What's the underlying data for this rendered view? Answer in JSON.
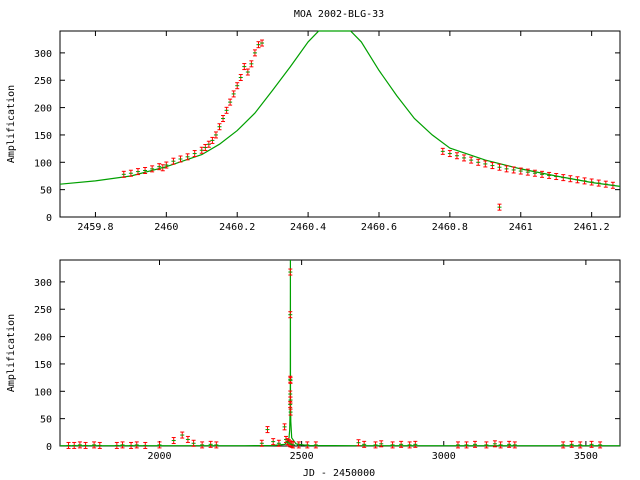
{
  "title": "MOA 2002-BLG-33",
  "colors": {
    "data": "#ff0000",
    "model": "#00a000",
    "frame": "#000000",
    "background": "#ffffff"
  },
  "chart_data": [
    {
      "type": "scatter",
      "ylabel": "Amplification",
      "xlim": [
        2459.7,
        2461.28
      ],
      "ylim": [
        0,
        340
      ],
      "xticks": [
        2459.8,
        2460,
        2460.2,
        2460.4,
        2460.6,
        2460.8,
        2461,
        2461.2
      ],
      "xtick_labels": [
        "2459.8",
        "2460",
        "2460.2",
        "2460.4",
        "2460.6",
        "2460.8",
        "2461",
        "2461.2"
      ],
      "yticks": [
        0,
        50,
        100,
        150,
        200,
        250,
        300
      ],
      "ytick_labels": [
        "0",
        "50",
        "100",
        "150",
        "200",
        "250",
        "300"
      ],
      "grid": false,
      "series": [
        {
          "role": "observed",
          "style": "errorbar-points",
          "x": [
            2459.88,
            2459.9,
            2459.92,
            2459.94,
            2459.96,
            2459.98,
            2460.0,
            2460.02,
            2460.04,
            2460.06,
            2460.08,
            2460.1,
            2460.11,
            2460.12,
            2460.13,
            2460.14,
            2460.15,
            2460.16,
            2460.17,
            2460.18,
            2460.19,
            2460.2,
            2460.21,
            2460.22,
            2460.23,
            2460.24,
            2460.25,
            2460.26,
            2460.27,
            2460.78,
            2460.8,
            2460.82,
            2460.84,
            2460.86,
            2460.88,
            2460.9,
            2460.92,
            2460.94,
            2460.96,
            2460.98,
            2461.0,
            2461.02,
            2461.04,
            2461.06,
            2461.08,
            2461.1,
            2461.12,
            2461.14,
            2461.16,
            2461.18,
            2461.2,
            2461.22,
            2461.24,
            2461.26
          ],
          "y": [
            78,
            80,
            83,
            85,
            88,
            92,
            95,
            102,
            106,
            110,
            116,
            122,
            127,
            133,
            140,
            150,
            165,
            180,
            195,
            210,
            225,
            240,
            255,
            275,
            265,
            280,
            300,
            315,
            318,
            120,
            116,
            112,
            108,
            104,
            100,
            97,
            94,
            91,
            88,
            86,
            84,
            82,
            80,
            78,
            76,
            74,
            72,
            70,
            68,
            66,
            64,
            62,
            60,
            58
          ]
        },
        {
          "role": "outlier",
          "style": "errorbar-points",
          "x": [
            2460.94,
            2459.99
          ],
          "y": [
            18,
            90
          ]
        },
        {
          "role": "model",
          "style": "line",
          "x": [
            2459.7,
            2459.8,
            2459.9,
            2460.0,
            2460.1,
            2460.15,
            2460.2,
            2460.25,
            2460.3,
            2460.35,
            2460.4,
            2460.43,
            2460.52,
            2460.55,
            2460.6,
            2460.65,
            2460.7,
            2460.75,
            2460.8,
            2460.9,
            2461.0,
            2461.1,
            2461.2,
            2461.28
          ],
          "y": [
            60,
            66,
            75,
            92,
            114,
            133,
            158,
            190,
            232,
            275,
            320,
            345,
            345,
            320,
            268,
            222,
            180,
            150,
            126,
            104,
            88,
            75,
            63,
            56
          ]
        }
      ]
    },
    {
      "type": "scatter",
      "ylabel": "Amplification",
      "xlabel": "JD - 2450000",
      "xlim": [
        1650,
        3620
      ],
      "ylim": [
        0,
        340
      ],
      "xticks": [
        2000,
        2500,
        3000,
        3500
      ],
      "xtick_labels": [
        "2000",
        "2500",
        "3000",
        "3500"
      ],
      "yticks": [
        0,
        50,
        100,
        150,
        200,
        250,
        300
      ],
      "ytick_labels": [
        "0",
        "50",
        "100",
        "150",
        "200",
        "250",
        "300"
      ],
      "grid": false,
      "series": [
        {
          "role": "observed",
          "style": "errorbar-points",
          "x": [
            1680,
            1700,
            1720,
            1740,
            1770,
            1790,
            1850,
            1870,
            1900,
            1920,
            1950,
            2000,
            2050,
            2080,
            2100,
            2120,
            2150,
            2180,
            2200,
            2360,
            2380,
            2400,
            2420,
            2440,
            2445,
            2450,
            2455,
            2460,
            2465,
            2470,
            2490,
            2520,
            2550,
            2700,
            2720,
            2760,
            2780,
            2820,
            2850,
            2880,
            2900,
            3050,
            3080,
            3110,
            3150,
            3180,
            3200,
            3230,
            3250,
            3420,
            3450,
            3480,
            3520,
            3550
          ],
          "y": [
            1,
            1,
            2,
            1,
            2,
            1,
            1,
            2,
            1,
            2,
            1,
            2,
            10,
            20,
            12,
            5,
            2,
            3,
            2,
            5,
            30,
            8,
            5,
            35,
            12,
            8,
            6,
            4,
            3,
            2,
            2,
            2,
            2,
            6,
            3,
            2,
            4,
            2,
            3,
            2,
            3,
            2,
            2,
            3,
            2,
            4,
            2,
            3,
            2,
            2,
            3,
            2,
            3,
            2
          ]
        },
        {
          "role": "peak",
          "style": "errorbar-points",
          "x": [
            2459.8,
            2460.0,
            2460.1,
            2460.2,
            2460.27,
            2460.8,
            2461.0,
            2461.2
          ],
          "y": [
            76,
            95,
            122,
            240,
            318,
            120,
            84,
            62
          ]
        },
        {
          "role": "model",
          "style": "line",
          "x": [
            1650,
            2300,
            2400,
            2440,
            2455,
            2458,
            2459,
            2460,
            2460.5,
            2461,
            2462,
            2465,
            2480,
            2520,
            2700,
            3620
          ],
          "y": [
            0.5,
            0.5,
            1,
            3,
            10,
            30,
            55,
            95,
            345,
            84,
            45,
            15,
            4,
            1,
            0.5,
            0.5
          ]
        }
      ]
    }
  ]
}
